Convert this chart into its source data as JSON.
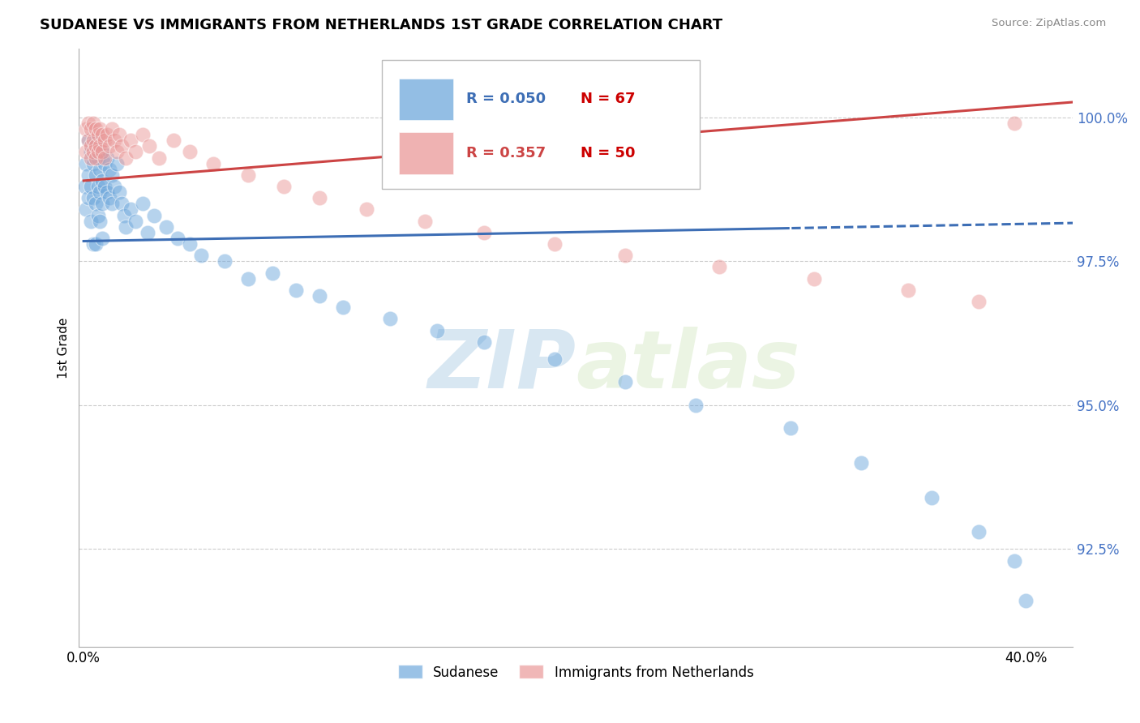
{
  "title": "SUDANESE VS IMMIGRANTS FROM NETHERLANDS 1ST GRADE CORRELATION CHART",
  "source_text": "Source: ZipAtlas.com",
  "ylabel": "1st Grade",
  "yticks": [
    0.925,
    0.95,
    0.975,
    1.0
  ],
  "ytick_labels": [
    "92.5%",
    "95.0%",
    "97.5%",
    "100.0%"
  ],
  "xlim": [
    -0.002,
    0.42
  ],
  "ylim": [
    0.908,
    1.012
  ],
  "legend_blue_r": "R = 0.050",
  "legend_blue_n": "N = 67",
  "legend_pink_r": "R = 0.357",
  "legend_pink_n": "N = 50",
  "blue_color": "#6fa8dc",
  "pink_color": "#ea9999",
  "blue_line_color": "#3d6eb5",
  "pink_line_color": "#cc4444",
  "blue_scatter_x": [
    0.0005,
    0.001,
    0.001,
    0.002,
    0.002,
    0.002,
    0.003,
    0.003,
    0.003,
    0.004,
    0.004,
    0.004,
    0.005,
    0.005,
    0.005,
    0.006,
    0.006,
    0.006,
    0.007,
    0.007,
    0.007,
    0.008,
    0.008,
    0.008,
    0.009,
    0.009,
    0.01,
    0.01,
    0.011,
    0.011,
    0.012,
    0.012,
    0.013,
    0.014,
    0.015,
    0.016,
    0.017,
    0.018,
    0.02,
    0.022,
    0.025,
    0.027,
    0.03,
    0.035,
    0.04,
    0.045,
    0.05,
    0.06,
    0.07,
    0.08,
    0.09,
    0.1,
    0.11,
    0.13,
    0.15,
    0.17,
    0.2,
    0.23,
    0.26,
    0.3,
    0.33,
    0.36,
    0.38,
    0.395,
    0.4,
    0.005,
    0.008
  ],
  "blue_scatter_y": [
    0.988,
    0.992,
    0.984,
    0.996,
    0.99,
    0.986,
    0.994,
    0.988,
    0.982,
    0.992,
    0.986,
    0.978,
    0.996,
    0.99,
    0.985,
    0.993,
    0.988,
    0.983,
    0.991,
    0.987,
    0.982,
    0.994,
    0.989,
    0.985,
    0.992,
    0.988,
    0.993,
    0.987,
    0.991,
    0.986,
    0.99,
    0.985,
    0.988,
    0.992,
    0.987,
    0.985,
    0.983,
    0.981,
    0.984,
    0.982,
    0.985,
    0.98,
    0.983,
    0.981,
    0.979,
    0.978,
    0.976,
    0.975,
    0.972,
    0.973,
    0.97,
    0.969,
    0.967,
    0.965,
    0.963,
    0.961,
    0.958,
    0.954,
    0.95,
    0.946,
    0.94,
    0.934,
    0.928,
    0.923,
    0.916,
    0.978,
    0.979
  ],
  "pink_scatter_x": [
    0.001,
    0.001,
    0.002,
    0.002,
    0.003,
    0.003,
    0.003,
    0.004,
    0.004,
    0.004,
    0.005,
    0.005,
    0.005,
    0.006,
    0.006,
    0.007,
    0.007,
    0.008,
    0.008,
    0.009,
    0.009,
    0.01,
    0.011,
    0.012,
    0.013,
    0.014,
    0.015,
    0.016,
    0.018,
    0.02,
    0.022,
    0.025,
    0.028,
    0.032,
    0.038,
    0.045,
    0.055,
    0.07,
    0.085,
    0.1,
    0.12,
    0.145,
    0.17,
    0.2,
    0.23,
    0.27,
    0.31,
    0.35,
    0.38,
    0.395
  ],
  "pink_scatter_y": [
    0.998,
    0.994,
    0.999,
    0.996,
    0.998,
    0.995,
    0.993,
    0.999,
    0.996,
    0.994,
    0.998,
    0.995,
    0.993,
    0.997,
    0.994,
    0.998,
    0.995,
    0.997,
    0.994,
    0.996,
    0.993,
    0.997,
    0.995,
    0.998,
    0.996,
    0.994,
    0.997,
    0.995,
    0.993,
    0.996,
    0.994,
    0.997,
    0.995,
    0.993,
    0.996,
    0.994,
    0.992,
    0.99,
    0.988,
    0.986,
    0.984,
    0.982,
    0.98,
    0.978,
    0.976,
    0.974,
    0.972,
    0.97,
    0.968,
    0.999
  ],
  "watermark_zip": "ZIP",
  "watermark_atlas": "atlas",
  "background_color": "#ffffff",
  "grid_color": "#cccccc",
  "trend_split": 0.3
}
